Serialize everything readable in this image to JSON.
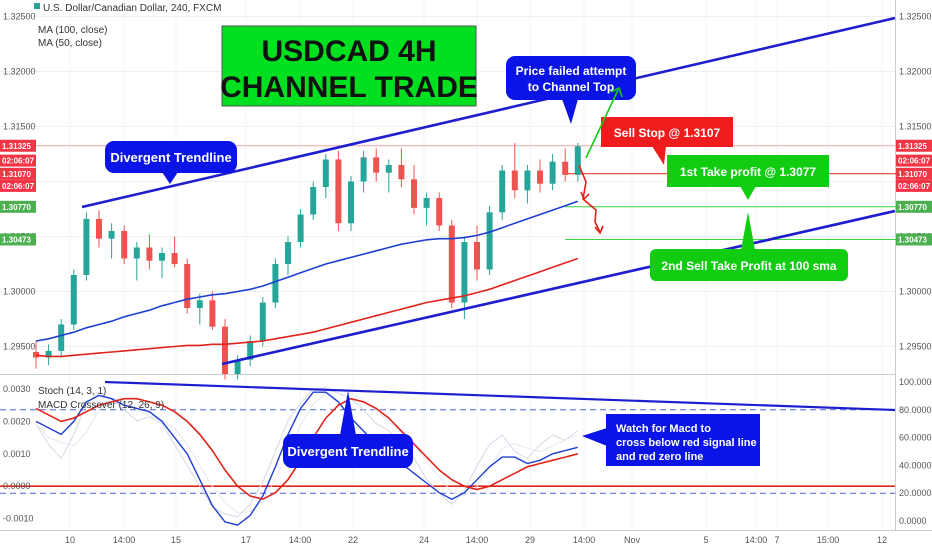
{
  "header": {
    "symbol_line": "U.S. Dollar/Canadian Dollar, 240, FXCM",
    "ma100_label": "MA (100, close)",
    "ma50_label": "MA (50, close)"
  },
  "indicators": {
    "stoch_label": "Stoch (14, 3, 1)",
    "macd_label": "MACD Crossover (12, 26, 9)"
  },
  "chart_data": [
    {
      "type": "line",
      "title": "USDCAD 4H CHANNEL TRADE",
      "price_axis_ticks": [
        "1.32500",
        "1.32000",
        "1.31500",
        "1.31000",
        "1.30500",
        "1.30000",
        "1.29500"
      ],
      "ylim": [
        1.2925,
        1.3265
      ],
      "x_tick_labels": [
        "10",
        "14:00",
        "15",
        "17",
        "14:00",
        "22",
        "24",
        "14:00",
        "29",
        "14:00",
        "Nov",
        "5",
        "14:00",
        "7",
        "15:00",
        "12"
      ],
      "price_tags": [
        {
          "text": "1.31325",
          "value": 1.31325,
          "color": "#f23645"
        },
        {
          "text": "02:06:07",
          "value": 1.3119,
          "color": "#f23645"
        },
        {
          "text": "1.31070",
          "value": 1.3107,
          "color": "#f23645"
        },
        {
          "text": "02:06:07",
          "value": 1.3096,
          "color": "#f23645"
        },
        {
          "text": "1.30770",
          "value": 1.3077,
          "color": "#4caf50"
        },
        {
          "text": "1.30473",
          "value": 1.30473,
          "color": "#4caf50"
        }
      ],
      "levels": {
        "sell_stop": 1.3107,
        "take_profit_1": 1.3077,
        "take_profit_2": 1.30473
      },
      "candles": [
        [
          1.2945,
          1.2955,
          1.293,
          1.294
        ],
        [
          1.294,
          1.2952,
          1.2933,
          1.2946
        ],
        [
          1.2946,
          1.2975,
          1.294,
          1.297
        ],
        [
          1.297,
          1.302,
          1.2965,
          1.3015
        ],
        [
          1.3015,
          1.3072,
          1.301,
          1.3066
        ],
        [
          1.3066,
          1.3074,
          1.304,
          1.3048
        ],
        [
          1.3048,
          1.3062,
          1.303,
          1.3055
        ],
        [
          1.3055,
          1.306,
          1.3025,
          1.303
        ],
        [
          1.303,
          1.3045,
          1.301,
          1.304
        ],
        [
          1.304,
          1.3052,
          1.302,
          1.3028
        ],
        [
          1.3028,
          1.304,
          1.3012,
          1.3035
        ],
        [
          1.3035,
          1.305,
          1.3022,
          1.3025
        ],
        [
          1.3025,
          1.303,
          1.298,
          1.2985
        ],
        [
          1.2985,
          1.2998,
          1.297,
          1.2992
        ],
        [
          1.2992,
          1.3,
          1.2965,
          1.2968
        ],
        [
          1.2968,
          1.2975,
          1.292,
          1.2925
        ],
        [
          1.2925,
          1.2942,
          1.292,
          1.2938
        ],
        [
          1.2938,
          1.296,
          1.2932,
          1.2955
        ],
        [
          1.2955,
          1.2995,
          1.295,
          1.299
        ],
        [
          1.299,
          1.303,
          1.2985,
          1.3025
        ],
        [
          1.3025,
          1.305,
          1.3015,
          1.3045
        ],
        [
          1.3045,
          1.3075,
          1.304,
          1.307
        ],
        [
          1.307,
          1.31,
          1.3065,
          1.3095
        ],
        [
          1.3095,
          1.3125,
          1.3085,
          1.312
        ],
        [
          1.312,
          1.3128,
          1.3055,
          1.3062
        ],
        [
          1.3062,
          1.3105,
          1.3055,
          1.31
        ],
        [
          1.31,
          1.3128,
          1.309,
          1.3122
        ],
        [
          1.3122,
          1.313,
          1.31,
          1.3108
        ],
        [
          1.3108,
          1.312,
          1.309,
          1.3115
        ],
        [
          1.3115,
          1.313,
          1.3095,
          1.3102
        ],
        [
          1.3102,
          1.3115,
          1.307,
          1.3076
        ],
        [
          1.3076,
          1.309,
          1.306,
          1.3085
        ],
        [
          1.3085,
          1.309,
          1.3055,
          1.306
        ],
        [
          1.306,
          1.3065,
          1.2985,
          1.299
        ],
        [
          1.299,
          1.305,
          1.2975,
          1.3045
        ],
        [
          1.3045,
          1.306,
          1.301,
          1.302
        ],
        [
          1.302,
          1.3078,
          1.3015,
          1.3072
        ],
        [
          1.3072,
          1.3115,
          1.3065,
          1.311
        ],
        [
          1.311,
          1.3135,
          1.3085,
          1.3092
        ],
        [
          1.3092,
          1.3115,
          1.308,
          1.311
        ],
        [
          1.311,
          1.312,
          1.309,
          1.3098
        ],
        [
          1.3098,
          1.3125,
          1.3092,
          1.3118
        ],
        [
          1.3118,
          1.313,
          1.31,
          1.3106
        ],
        [
          1.3106,
          1.3135,
          1.31,
          1.3132
        ]
      ],
      "ma50": [
        1.2955,
        1.2957,
        1.296,
        1.2963,
        1.2967,
        1.297,
        1.2973,
        1.2977,
        1.298,
        1.2983,
        1.2987,
        1.299,
        1.2993,
        1.2995,
        1.2997,
        1.2998,
        1.3,
        1.3002,
        1.3005,
        1.3009,
        1.3013,
        1.3017,
        1.3021,
        1.3025,
        1.3028,
        1.3031,
        1.3034,
        1.3037,
        1.304,
        1.3043,
        1.3045,
        1.3047,
        1.3048,
        1.3048,
        1.3049,
        1.3051,
        1.3054,
        1.3058,
        1.3062,
        1.3066,
        1.307,
        1.3074,
        1.3078,
        1.3082
      ],
      "ma100": [
        1.2942,
        1.2941,
        1.2941,
        1.2942,
        1.2943,
        1.2944,
        1.2945,
        1.2946,
        1.2947,
        1.2948,
        1.2949,
        1.295,
        1.2951,
        1.2951,
        1.2952,
        1.2952,
        1.2953,
        1.2954,
        1.2955,
        1.2957,
        1.2959,
        1.2961,
        1.2963,
        1.2966,
        1.2969,
        1.2972,
        1.2975,
        1.2978,
        1.2981,
        1.2984,
        1.2987,
        1.299,
        1.2992,
        1.2994,
        1.2996,
        1.2999,
        1.3002,
        1.3006,
        1.301,
        1.3014,
        1.3018,
        1.3022,
        1.3026,
        1.303
      ]
    },
    {
      "type": "line",
      "macd_axis_ticks": [
        "0.0030",
        "0.0020",
        "0.0010",
        "0.0000",
        "-0.0010"
      ],
      "macd_ylim": [
        -0.00135,
        0.0034
      ],
      "stoch_axis_ticks": [
        "100.0000",
        "80.0000",
        "60.0000",
        "40.0000",
        "20.0000",
        "0.0000"
      ],
      "series": [
        {
          "values": [
            0.002,
            0.0018,
            0.0016,
            0.002,
            0.0026,
            0.0028,
            0.0027,
            0.0025,
            0.0024,
            0.0023,
            0.002,
            0.0015,
            0.001,
            0.0002,
            -0.0006,
            -0.0011,
            -0.0012,
            -0.0009,
            -0.0003,
            0.0006,
            0.0016,
            0.0024,
            0.0029,
            0.0029,
            0.0026,
            0.0021,
            0.0017,
            0.0013,
            0.001,
            0.0007,
            0.0004,
            0.0001,
            -0.0002,
            -0.0004,
            -0.0002,
            0.0002,
            0.0006,
            0.0009,
            0.0009,
            0.0007,
            0.0008,
            0.001,
            0.0011,
            0.0012
          ]
        },
        {
          "values": [
            0.0024,
            0.0022,
            0.002,
            0.0021,
            0.0023,
            0.0025,
            0.0026,
            0.0027,
            0.0027,
            0.0026,
            0.0025,
            0.0023,
            0.002,
            0.0016,
            0.0011,
            0.0005,
            0.0,
            -0.0003,
            -0.0004,
            -0.0002,
            0.0002,
            0.0008,
            0.0015,
            0.0021,
            0.0025,
            0.0027,
            0.0026,
            0.0024,
            0.0021,
            0.0017,
            0.0013,
            0.0009,
            0.0005,
            0.0002,
            0.0,
            -0.0001,
            0.0,
            0.0002,
            0.0004,
            0.0006,
            0.0007,
            0.0008,
            0.0009,
            0.001
          ]
        },
        {
          "values": [
            70,
            55,
            45,
            62,
            85,
            92,
            88,
            80,
            72,
            75,
            70,
            55,
            40,
            25,
            10,
            5,
            3,
            12,
            28,
            50,
            72,
            85,
            95,
            96,
            92,
            88,
            80,
            70,
            65,
            55,
            45,
            30,
            20,
            12,
            22,
            40,
            55,
            62,
            50,
            45,
            55,
            62,
            58,
            65
          ]
        }
      ]
    }
  ],
  "annotations": {
    "title_line1": "USDCAD 4H",
    "title_line2": "CHANNEL TRADE",
    "divergent_top": "Divergent Trendline",
    "divergent_bottom": "Divergent Trendline",
    "price_failed_1": "Price failed attempt",
    "price_failed_2": "to Channel Top",
    "sell_stop": "Sell Stop @ 1.3107",
    "tp1": "1st Take profit @ 1.3077",
    "tp2": "2nd Sell Take Profit at 100 sma",
    "macd_note_1": "Watch for Macd to",
    "macd_note_2": "cross below red signal line",
    "macd_note_3": "and red zero line"
  },
  "colors": {
    "bull": "#26a69a",
    "bear": "#ef5350",
    "ma50": "#1e3fd0",
    "ma100": "#e2231a",
    "trendline": "#1e1ed0",
    "title_bg": "#00e020",
    "note_bg": "#0a14e6",
    "sell_bg": "#ee1c1c",
    "tp_bg": "#11cc11"
  }
}
